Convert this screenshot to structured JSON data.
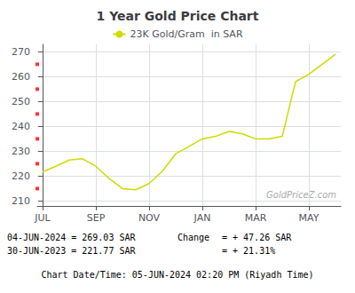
{
  "chart_data": {
    "type": "line",
    "title": "1 Year Gold Price Chart",
    "x": [
      0,
      0.5,
      1,
      1.5,
      2,
      2.5,
      3,
      3.5,
      4,
      4.5,
      5,
      5.5,
      6,
      6.5,
      7,
      7.5,
      8,
      8.5,
      9,
      9.5,
      10,
      10.5,
      11
    ],
    "series": [
      {
        "name": "23K Gold/Gram  in SAR",
        "color": "#ccdd00",
        "values": [
          221.77,
          224,
          226.5,
          227,
          224,
          219,
          215,
          214.5,
          217,
          222,
          229,
          232,
          235,
          236,
          238,
          237,
          235,
          235,
          236,
          258,
          261,
          265,
          269.03
        ]
      }
    ],
    "xlim": [
      -0.2,
      11.2
    ],
    "xticks": [
      {
        "value": 0,
        "label": "JUL"
      },
      {
        "value": 2,
        "label": "SEP"
      },
      {
        "value": 4,
        "label": "NOV"
      },
      {
        "value": 6,
        "label": "JAN"
      },
      {
        "value": 8,
        "label": "MAR"
      },
      {
        "value": 10,
        "label": "MAY"
      }
    ],
    "ylim": [
      208,
      273
    ],
    "yticks": [
      210,
      220,
      230,
      240,
      250,
      260,
      270
    ],
    "grid": true,
    "legend": "top",
    "y_markers": {
      "values": [
        215,
        225,
        235,
        245,
        255,
        265
      ],
      "color": "red"
    },
    "watermark": "GoldPriceZ.com",
    "info_left": [
      "04-JUN-2024 = 269.03 SAR",
      "30-JUN-2023 = 221.77 SAR"
    ],
    "change_label": "Change",
    "info_right": [
      "= + 47.26 SAR",
      "= + 21.31%"
    ],
    "footer": "Chart Date/Time: 05-JUN-2024 02:20 PM (Riyadh Time)"
  }
}
